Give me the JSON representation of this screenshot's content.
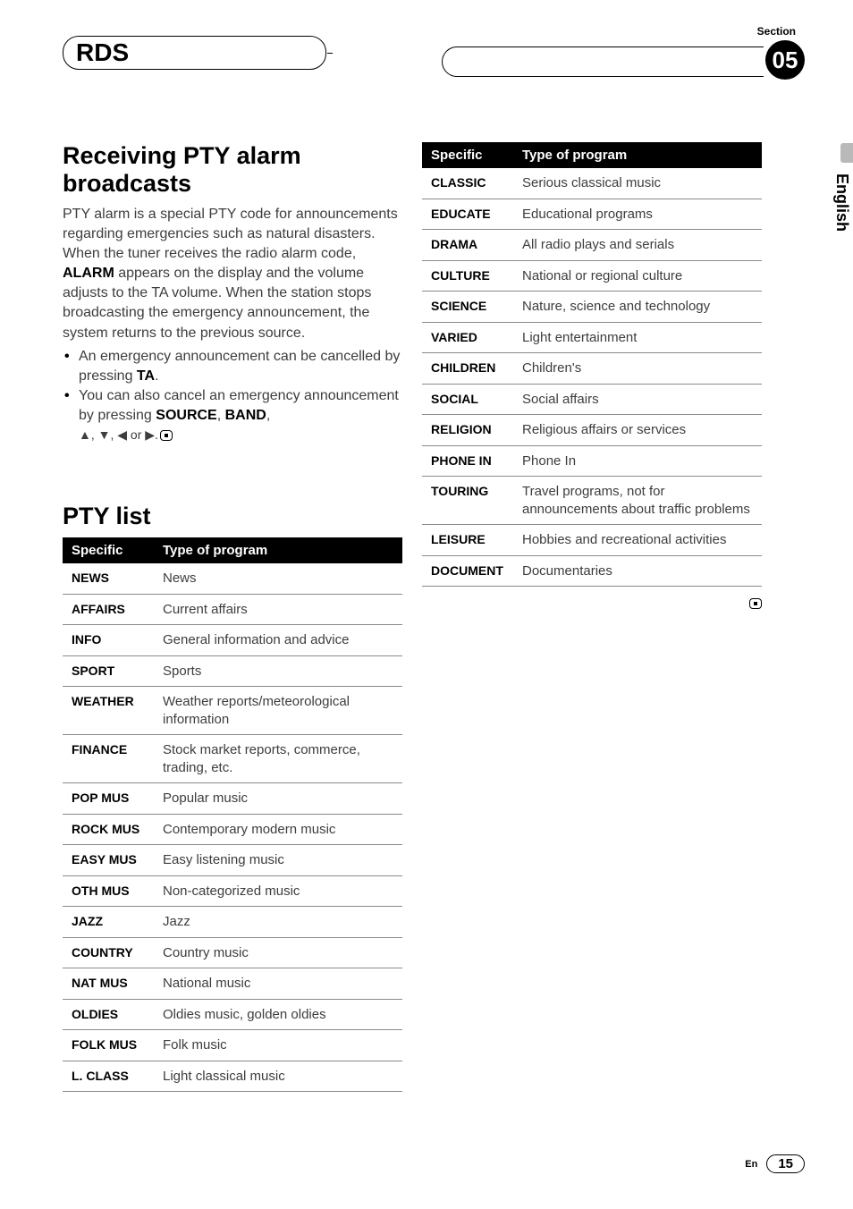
{
  "header": {
    "chapter": "RDS",
    "section_label": "Section",
    "section_number": "05"
  },
  "language_tab": "English",
  "left": {
    "heading1": "Receiving PTY alarm broadcasts",
    "paragraph_parts": {
      "p1": "PTY alarm is a special PTY code for announcements regarding emergencies such as natural disasters. When the tuner receives the radio alarm code, ",
      "p1b": "ALARM",
      "p1c": " appears on the display and the volume adjusts to the TA volume. When the station stops broadcasting the emergency announcement, the system returns to the previous source."
    },
    "bullets": {
      "b1a": "An emergency announcement can be cancelled by pressing ",
      "b1b": "TA",
      "b1c": ".",
      "b2a": "You can also cancel an emergency announcement by pressing ",
      "b2b": "SOURCE",
      "b2c": ", ",
      "b2d": "BAND",
      "b2e": ", ",
      "b2arrows": "▲, ▼, ◀ or ▶.",
      "b2end": ""
    },
    "heading2": "PTY list",
    "table_head_specific": "Specific",
    "table_head_type": "Type of program",
    "table1": [
      {
        "s": "NEWS",
        "t": "News"
      },
      {
        "s": "AFFAIRS",
        "t": "Current affairs"
      },
      {
        "s": "INFO",
        "t": "General information and advice"
      },
      {
        "s": "SPORT",
        "t": "Sports"
      },
      {
        "s": "WEATHER",
        "t": "Weather reports/meteorological information"
      },
      {
        "s": "FINANCE",
        "t": "Stock market reports, commerce, trading, etc."
      },
      {
        "s": "POP MUS",
        "t": "Popular music"
      },
      {
        "s": "ROCK MUS",
        "t": "Contemporary modern music"
      },
      {
        "s": "EASY MUS",
        "t": "Easy listening music"
      },
      {
        "s": "OTH MUS",
        "t": "Non-categorized music"
      },
      {
        "s": "JAZZ",
        "t": "Jazz"
      },
      {
        "s": "COUNTRY",
        "t": "Country music"
      },
      {
        "s": "NAT MUS",
        "t": "National music"
      },
      {
        "s": "OLDIES",
        "t": "Oldies music, golden oldies"
      },
      {
        "s": "FOLK MUS",
        "t": "Folk music"
      },
      {
        "s": "L. CLASS",
        "t": "Light classical music"
      }
    ]
  },
  "right": {
    "table_head_specific": "Specific",
    "table_head_type": "Type of program",
    "table2": [
      {
        "s": "CLASSIC",
        "t": "Serious classical music"
      },
      {
        "s": "EDUCATE",
        "t": "Educational programs"
      },
      {
        "s": "DRAMA",
        "t": "All radio plays and serials"
      },
      {
        "s": "CULTURE",
        "t": "National or regional culture"
      },
      {
        "s": "SCIENCE",
        "t": "Nature, science and technology"
      },
      {
        "s": "VARIED",
        "t": "Light entertainment"
      },
      {
        "s": "CHILDREN",
        "t": "Children's"
      },
      {
        "s": "SOCIAL",
        "t": "Social affairs"
      },
      {
        "s": "RELIGION",
        "t": "Religious affairs or services"
      },
      {
        "s": "PHONE IN",
        "t": "Phone In"
      },
      {
        "s": "TOURING",
        "t": "Travel programs, not for announcements about traffic problems"
      },
      {
        "s": "LEISURE",
        "t": "Hobbies and recreational activities"
      },
      {
        "s": "DOCUMENT",
        "t": "Documentaries"
      }
    ]
  },
  "footer": {
    "lang": "En",
    "page": "15"
  },
  "colors": {
    "text": "#000000",
    "body_text": "#3d3d3d",
    "bg": "#ffffff",
    "table_header_bg": "#000000",
    "table_header_fg": "#ffffff",
    "row_border": "#8a8a8a",
    "lang_bar": "#b9b9b9"
  },
  "typography": {
    "h1_size_pt": 20,
    "body_size_pt": 12,
    "table_size_pt": 11,
    "chapter_size_pt": 21
  }
}
